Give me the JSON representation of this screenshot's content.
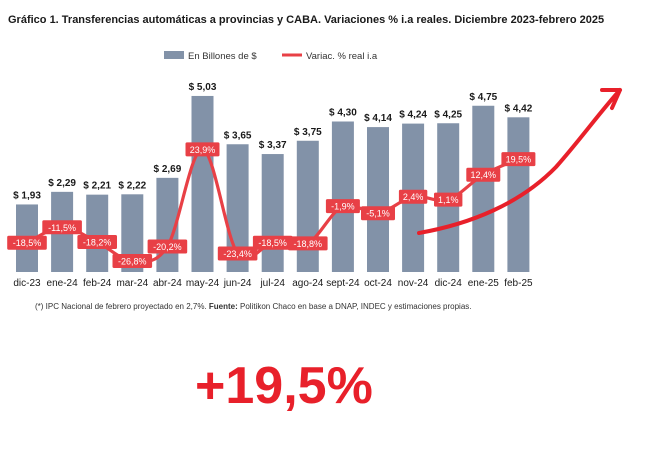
{
  "title": "Gráfico 1. Transferencias automáticas a provincias y CABA. Variaciones % i.a reales. Diciembre 2023-febrero 2025",
  "legend": [
    {
      "label": "En Billones de $",
      "color": "#8292a8"
    },
    {
      "label": "Variac. % real i.a",
      "color": "#e84046"
    }
  ],
  "footnote": {
    "prefix": "(*) IPC Nacional de febrero proyectado en 2,7%. ",
    "bold": "Fuente:",
    "rest": " Politikon Chaco en base a DNAP, INDEC y estimaciones propias."
  },
  "headline": "+19,5%",
  "annotation": {
    "type": "hand-drawn-arrow",
    "color": "#e8202a"
  },
  "chart_data": {
    "type": "bar+line",
    "categories": [
      "dic-23",
      "ene-24",
      "feb-24",
      "mar-24",
      "abr-24",
      "may-24",
      "jun-24",
      "jul-24",
      "ago-24",
      "sept-24",
      "oct-24",
      "nov-24",
      "dic-24",
      "ene-25",
      "feb-25"
    ],
    "series": [
      {
        "name": "En Billones de $",
        "kind": "bar",
        "color": "#8292a8",
        "values": [
          1.93,
          2.29,
          2.21,
          2.22,
          2.69,
          5.03,
          3.65,
          3.37,
          3.75,
          4.3,
          4.14,
          4.24,
          4.25,
          4.75,
          4.42
        ],
        "labels": [
          "$ 1,93",
          "$ 2,29",
          "$ 2,21",
          "$ 2,22",
          "$ 2,69",
          "$ 5,03",
          "$ 3,65",
          "$ 3,37",
          "$ 3,75",
          "$ 4,30",
          "$ 4,14",
          "$ 4,24",
          "$ 4,25",
          "$ 4,75",
          "$ 4,42"
        ]
      },
      {
        "name": "Variac. % real i.a",
        "kind": "line",
        "color": "#e84046",
        "values": [
          -18.5,
          -11.5,
          -18.2,
          -26.8,
          -20.2,
          23.9,
          -23.4,
          -18.5,
          -18.8,
          -1.9,
          -5.1,
          2.4,
          1.1,
          12.4,
          19.5
        ],
        "labels": [
          "-18,5%",
          "-11,5%",
          "-18,2%",
          "-26,8%",
          "-20,2%",
          "23,9%",
          "-23,4%",
          "-18,5%",
          "-18,8%",
          "-1,9%",
          "-5,1%",
          "2,4%",
          "1,1%",
          "12,4%",
          "19,5%"
        ]
      }
    ]
  }
}
